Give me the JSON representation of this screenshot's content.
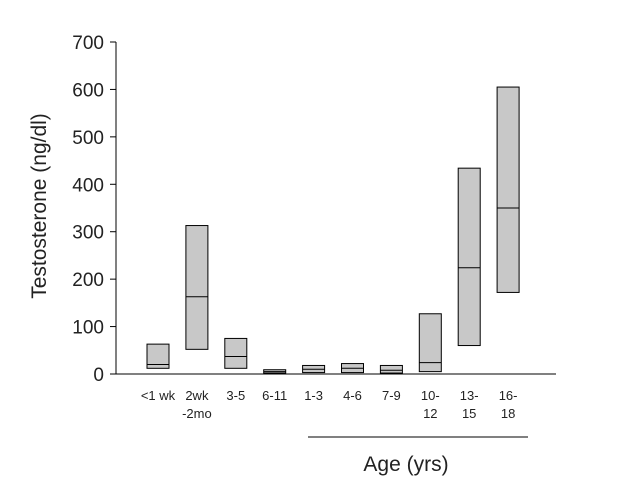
{
  "chart_data": {
    "type": "box",
    "ylabel": "Testosterone (ng/dl)",
    "xlabel": "Age (yrs)",
    "ylim": [
      0,
      700
    ],
    "yticks": [
      0,
      100,
      200,
      300,
      400,
      500,
      600,
      700
    ],
    "grid": false,
    "legend": "none",
    "box_fill": "#c8c8c8",
    "box_stroke": "#000000",
    "categories": [
      {
        "label": [
          "<1 wk"
        ],
        "low": 12,
        "median": 20,
        "high": 63
      },
      {
        "label": [
          "2wk",
          "-2mo"
        ],
        "low": 52,
        "median": 163,
        "high": 313
      },
      {
        "label": [
          "3-5"
        ],
        "low": 12,
        "median": 37,
        "high": 75
      },
      {
        "label": [
          "6-11"
        ],
        "low": 2,
        "median": 5,
        "high": 9
      },
      {
        "label": [
          "1-3"
        ],
        "low": 3,
        "median": 10,
        "high": 18
      },
      {
        "label": [
          "4-6"
        ],
        "low": 3,
        "median": 12,
        "high": 22
      },
      {
        "label": [
          "7-9"
        ],
        "low": 2,
        "median": 8,
        "high": 18
      },
      {
        "label": [
          "10-",
          "12"
        ],
        "low": 5,
        "median": 24,
        "high": 127
      },
      {
        "label": [
          "13-",
          "15"
        ],
        "low": 60,
        "median": 224,
        "high": 434
      },
      {
        "label": [
          "16-",
          "18"
        ],
        "low": 172,
        "median": 350,
        "high": 605
      }
    ]
  }
}
